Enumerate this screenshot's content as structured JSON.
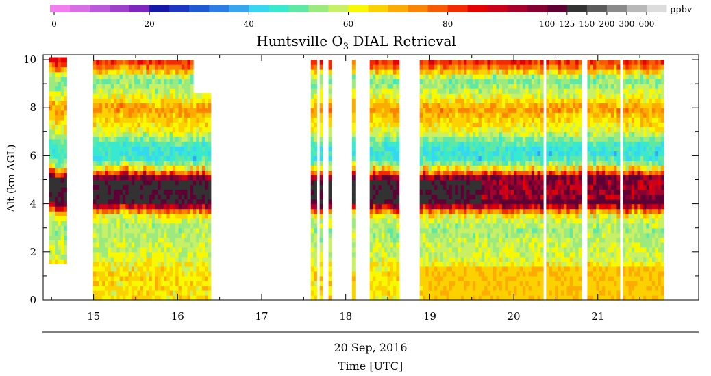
{
  "colorbar": {
    "unit": "ppbv",
    "colors": [
      "#f37cf0",
      "#d86de6",
      "#bb58db",
      "#9e40cc",
      "#7f25c0",
      "#1518a8",
      "#1b37c3",
      "#1f5ad5",
      "#2b7ee6",
      "#36a6f1",
      "#36d7f1",
      "#36e9cf",
      "#5ee8a6",
      "#9cea7e",
      "#c8f064",
      "#f8f800",
      "#fbd200",
      "#fcac00",
      "#fb8400",
      "#f75a00",
      "#f52a00",
      "#e70000",
      "#cc0018",
      "#a8002a",
      "#860032",
      "#5f0035",
      "#323232",
      "#5b5b5b",
      "#8a8a8a",
      "#b8b8b8",
      "#dcdcdc"
    ],
    "tick_labels": [
      {
        "label": "0",
        "seg": 0
      },
      {
        "label": "20",
        "seg": 5
      },
      {
        "label": "40",
        "seg": 10
      },
      {
        "label": "60",
        "seg": 15
      },
      {
        "label": "80",
        "seg": 20
      },
      {
        "label": "100",
        "seg": 25
      },
      {
        "label": "125",
        "seg": 26
      },
      {
        "label": "150",
        "seg": 27
      },
      {
        "label": "200",
        "seg": 28
      },
      {
        "label": "300",
        "seg": 29
      },
      {
        "label": "600",
        "seg": 30
      }
    ]
  },
  "chart_data": {
    "type": "heatmap",
    "title": "Huntsville O",
    "title_sub": "3",
    "title_rest": " DIAL Retrieval",
    "ylabel": "Alt (km AGL)",
    "xlabel_date": "20 Sep, 2016",
    "xlabel": "Time [UTC]",
    "xlim": [
      14.4,
      22.2
    ],
    "ylim": [
      0,
      10.2
    ],
    "x_ticks": [
      15,
      16,
      17,
      18,
      19,
      20,
      21
    ],
    "y_ticks": [
      0,
      2,
      4,
      6,
      8,
      10
    ],
    "data_gaps": [
      {
        "start": 14.4,
        "end": 14.48
      },
      {
        "start": 14.68,
        "end": 14.98
      },
      {
        "start": 16.38,
        "end": 17.58
      },
      {
        "start": 17.64,
        "end": 17.68
      },
      {
        "start": 17.74,
        "end": 17.78
      },
      {
        "start": 17.84,
        "end": 18.08
      },
      {
        "start": 18.12,
        "end": 18.3
      },
      {
        "start": 18.65,
        "end": 18.88
      },
      {
        "start": 20.36,
        "end": 20.4
      },
      {
        "start": 20.82,
        "end": 20.86
      },
      {
        "start": 21.26,
        "end": 21.3
      },
      {
        "start": 21.8,
        "end": 22.2
      }
    ],
    "profile_ppbv": [
      {
        "alt": 0.0,
        "ppbv": 64
      },
      {
        "alt": 1.0,
        "ppbv": 65
      },
      {
        "alt": 1.5,
        "ppbv": 63
      },
      {
        "alt": 1.8,
        "ppbv": 59
      },
      {
        "alt": 2.5,
        "ppbv": 57
      },
      {
        "alt": 3.0,
        "ppbv": 55
      },
      {
        "alt": 3.5,
        "ppbv": 60
      },
      {
        "alt": 3.8,
        "ppbv": 80
      },
      {
        "alt": 4.0,
        "ppbv": 100
      },
      {
        "alt": 4.3,
        "ppbv": 115
      },
      {
        "alt": 4.8,
        "ppbv": 120
      },
      {
        "alt": 5.1,
        "ppbv": 100
      },
      {
        "alt": 5.3,
        "ppbv": 80
      },
      {
        "alt": 5.6,
        "ppbv": 57
      },
      {
        "alt": 6.0,
        "ppbv": 44
      },
      {
        "alt": 6.5,
        "ppbv": 47
      },
      {
        "alt": 7.0,
        "ppbv": 60
      },
      {
        "alt": 8.0,
        "ppbv": 72
      },
      {
        "alt": 8.5,
        "ppbv": 60
      },
      {
        "alt": 9.2,
        "ppbv": 52
      },
      {
        "alt": 9.7,
        "ppbv": 75
      },
      {
        "alt": 10.0,
        "ppbv": 84
      }
    ]
  }
}
